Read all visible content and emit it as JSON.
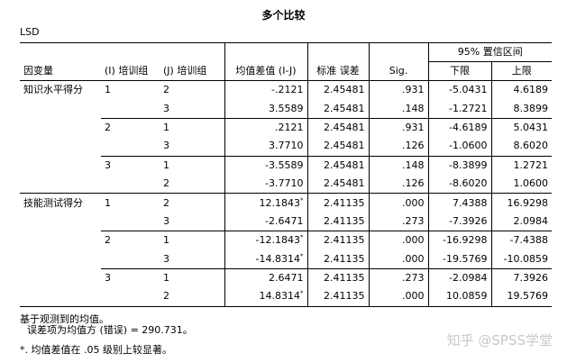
{
  "title": "多个比较",
  "method": "LSD",
  "headers": {
    "dependent": "因变量",
    "group_i": "(I) 培训组",
    "group_j": "(J) 培训组",
    "mean_diff": "均值差值 (I-J)",
    "std_error": "标准 误差",
    "sig": "Sig.",
    "ci": "95% 置信区间",
    "lower": "下限",
    "upper": "上限"
  },
  "rows": [
    {
      "dep": "知识水平得分",
      "i": "1",
      "j": "2",
      "diff": "-.2121",
      "star": "",
      "se": "2.45481",
      "sig": ".931",
      "lo": "-5.0431",
      "hi": "4.6189"
    },
    {
      "dep": "",
      "i": "",
      "j": "3",
      "diff": "3.5589",
      "star": "",
      "se": "2.45481",
      "sig": ".148",
      "lo": "-1.2721",
      "hi": "8.3899"
    },
    {
      "dep": "",
      "i": "2",
      "j": "1",
      "diff": ".2121",
      "star": "",
      "se": "2.45481",
      "sig": ".931",
      "lo": "-4.6189",
      "hi": "5.0431"
    },
    {
      "dep": "",
      "i": "",
      "j": "3",
      "diff": "3.7710",
      "star": "",
      "se": "2.45481",
      "sig": ".126",
      "lo": "-1.0600",
      "hi": "8.6020"
    },
    {
      "dep": "",
      "i": "3",
      "j": "1",
      "diff": "-3.5589",
      "star": "",
      "se": "2.45481",
      "sig": ".148",
      "lo": "-8.3899",
      "hi": "1.2721"
    },
    {
      "dep": "",
      "i": "",
      "j": "2",
      "diff": "-3.7710",
      "star": "",
      "se": "2.45481",
      "sig": ".126",
      "lo": "-8.6020",
      "hi": "1.0600"
    },
    {
      "dep": "技能测试得分",
      "i": "1",
      "j": "2",
      "diff": "12.1843",
      "star": "*",
      "se": "2.41135",
      "sig": ".000",
      "lo": "7.4388",
      "hi": "16.9298"
    },
    {
      "dep": "",
      "i": "",
      "j": "3",
      "diff": "-2.6471",
      "star": "",
      "se": "2.41135",
      "sig": ".273",
      "lo": "-7.3926",
      "hi": "2.0984"
    },
    {
      "dep": "",
      "i": "2",
      "j": "1",
      "diff": "-12.1843",
      "star": "*",
      "se": "2.41135",
      "sig": ".000",
      "lo": "-16.9298",
      "hi": "-7.4388"
    },
    {
      "dep": "",
      "i": "",
      "j": "3",
      "diff": "-14.8314",
      "star": "*",
      "se": "2.41135",
      "sig": ".000",
      "lo": "-19.5769",
      "hi": "-10.0859"
    },
    {
      "dep": "",
      "i": "3",
      "j": "1",
      "diff": "2.6471",
      "star": "",
      "se": "2.41135",
      "sig": ".273",
      "lo": "-2.0984",
      "hi": "7.3926"
    },
    {
      "dep": "",
      "i": "",
      "j": "2",
      "diff": "14.8314",
      "star": "*",
      "se": "2.41135",
      "sig": ".000",
      "lo": "10.0859",
      "hi": "19.5769"
    }
  ],
  "footnotes": {
    "basis": "基于观测到的均值。",
    "error_term": "误差项为均值方 (错误) = 290.731。",
    "significance": "*. 均值差值在 .05 级别上较显著。"
  },
  "watermark": "知乎 @SPSS学堂"
}
